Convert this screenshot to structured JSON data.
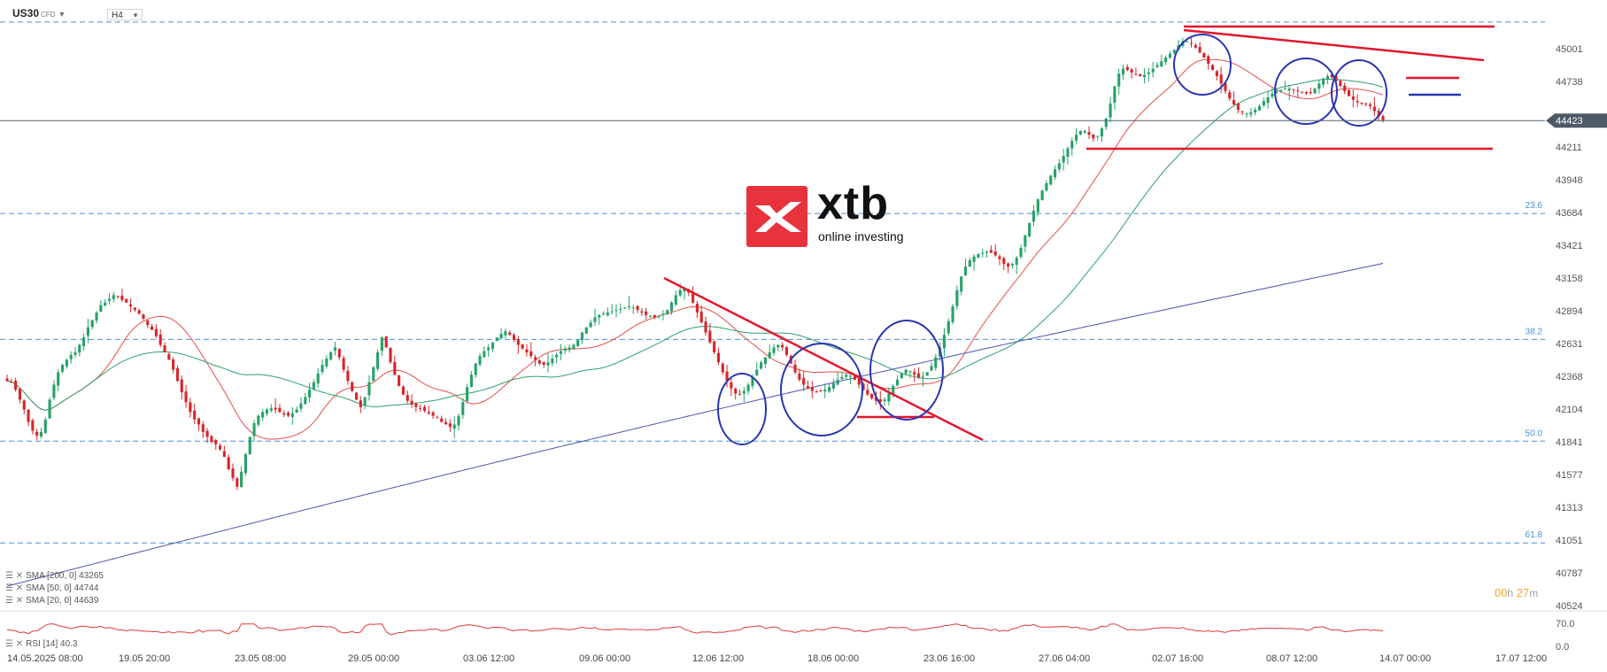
{
  "instrument": {
    "symbol": "US30",
    "type_tag": "CFD",
    "timeframe": "H4"
  },
  "branding": {
    "word": "xtb",
    "tagline": "online investing"
  },
  "countdown": {
    "hours": "00",
    "hours_unit": "h",
    "minutes": "27",
    "minutes_unit": "m"
  },
  "indicator_legend": [
    {
      "label": "SMA [200, 0] 43265"
    },
    {
      "label": "SMA [50, 0] 44744"
    },
    {
      "label": "SMA [20, 0] 44639"
    }
  ],
  "rsi_legend": "RSI [14] 40.3",
  "colors": {
    "bull": "#26a269",
    "bear": "#d7262a",
    "sma20": "#e84c4c",
    "sma50": "#2fa06a",
    "sma200": "#4b54a8",
    "fib": "#4a90d9",
    "annotation_red": "#e3162b",
    "annotation_blue": "#2a35b0",
    "price_tag": "#4d5a66"
  },
  "chart_data": {
    "type": "candlestick",
    "ylim": [
      40400,
      45250
    ],
    "y_ticks": [
      45001,
      44738,
      44475,
      44211,
      43948,
      43684,
      43421,
      43158,
      42894,
      42631,
      42368,
      42104,
      41841,
      41577,
      41313,
      41051,
      40787,
      40524
    ],
    "x_tick_labels": [
      "14.05.2025   08:00",
      "19.05   20:00",
      "23.05   08:00",
      "29.05   00:00",
      "03.06   12:00",
      "09.06   00:00",
      "12.06   12:00",
      "18.06   00:00",
      "23.06   16:00",
      "27.06   04:00",
      "02.07   16:00",
      "08.07   12:00",
      "14.07   00:00",
      "17.07   12:00"
    ],
    "current_price": 44423,
    "fib_levels": [
      {
        "label": "",
        "price": 45215
      },
      {
        "label": "23.6",
        "price": 43676
      },
      {
        "label": "38.2",
        "price": 42664
      },
      {
        "label": "50.0",
        "price": 41846
      },
      {
        "label": "61.8",
        "price": 41028
      }
    ],
    "close": [
      42330,
      42320,
      42260,
      42180,
      42100,
      42000,
      41930,
      41890,
      41920,
      42020,
      42180,
      42300,
      42400,
      42460,
      42500,
      42540,
      42560,
      42620,
      42680,
      42760,
      42820,
      42880,
      42940,
      42960,
      42990,
      43020,
      43010,
      42980,
      42960,
      42930,
      42900,
      42870,
      42830,
      42780,
      42740,
      42690,
      42620,
      42560,
      42500,
      42420,
      42330,
      42240,
      42160,
      42080,
      42020,
      41980,
      41920,
      41880,
      41840,
      41820,
      41780,
      41720,
      41620,
      41550,
      41480,
      41600,
      41740,
      41880,
      41990,
      42050,
      42080,
      42100,
      42110,
      42100,
      42080,
      42060,
      42050,
      42070,
      42100,
      42150,
      42200,
      42260,
      42320,
      42390,
      42460,
      42510,
      42560,
      42600,
      42520,
      42420,
      42330,
      42250,
      42180,
      42120,
      42200,
      42320,
      42440,
      42560,
      42680,
      42600,
      42480,
      42380,
      42290,
      42220,
      42170,
      42140,
      42120,
      42110,
      42090,
      42070,
      42050,
      42030,
      42000,
      41980,
      41960,
      41980,
      42050,
      42160,
      42280,
      42380,
      42470,
      42530,
      42570,
      42600,
      42640,
      42680,
      42710,
      42730,
      42700,
      42660,
      42620,
      42590,
      42560,
      42530,
      42500,
      42470,
      42460,
      42480,
      42510,
      42540,
      42570,
      42590,
      42600,
      42620,
      42660,
      42720,
      42760,
      42800,
      42840,
      42860,
      42870,
      42880,
      42890,
      42900,
      42910,
      42920,
      42930,
      42920,
      42900,
      42880,
      42860,
      42850,
      42840,
      42850,
      42870,
      42900,
      42960,
      43020,
      43060,
      43080,
      43040,
      42960,
      42880,
      42800,
      42720,
      42640,
      42560,
      42480,
      42400,
      42330,
      42270,
      42230,
      42220,
      42250,
      42300,
      42360,
      42420,
      42480,
      42520,
      42560,
      42600,
      42620,
      42600,
      42540,
      42470,
      42400,
      42340,
      42300,
      42270,
      42250,
      42240,
      42250,
      42260,
      42280,
      42310,
      42340,
      42360,
      42380,
      42370,
      42340,
      42300,
      42260,
      42220,
      42190,
      42170,
      42160,
      42180,
      42230,
      42290,
      42340,
      42390,
      42420,
      42410,
      42380,
      42360,
      42370,
      42400,
      42450,
      42520,
      42600,
      42700,
      42810,
      42930,
      43060,
      43170,
      43250,
      43300,
      43330,
      43350,
      43360,
      43370,
      43360,
      43340,
      43310,
      43270,
      43250,
      43270,
      43320,
      43400,
      43500,
      43600,
      43700,
      43790,
      43860,
      43920,
      43980,
      44030,
      44080,
      44140,
      44200,
      44260,
      44310,
      44340,
      44340,
      44310,
      44280,
      44300,
      44360,
      44440,
      44560,
      44700,
      44800,
      44840,
      44830,
      44810,
      44790,
      44780,
      44790,
      44810,
      44840,
      44870,
      44900,
      44930,
      44960,
      44990,
      45030,
      45060,
      45060,
      45040,
      45010,
      44970,
      44930,
      44880,
      44830,
      44780,
      44720,
      44660,
      44600,
      44550,
      44510,
      44490,
      44480,
      44490,
      44510,
      44540,
      44580,
      44610,
      44640,
      44660,
      44670,
      44680,
      44680,
      44670,
      44660,
      44650,
      44640,
      44650,
      44680,
      44720,
      44760,
      44780,
      44770,
      44740,
      44700,
      44660,
      44620,
      44590,
      44570,
      44560,
      44560,
      44540,
      44500,
      44460,
      44423
    ]
  }
}
